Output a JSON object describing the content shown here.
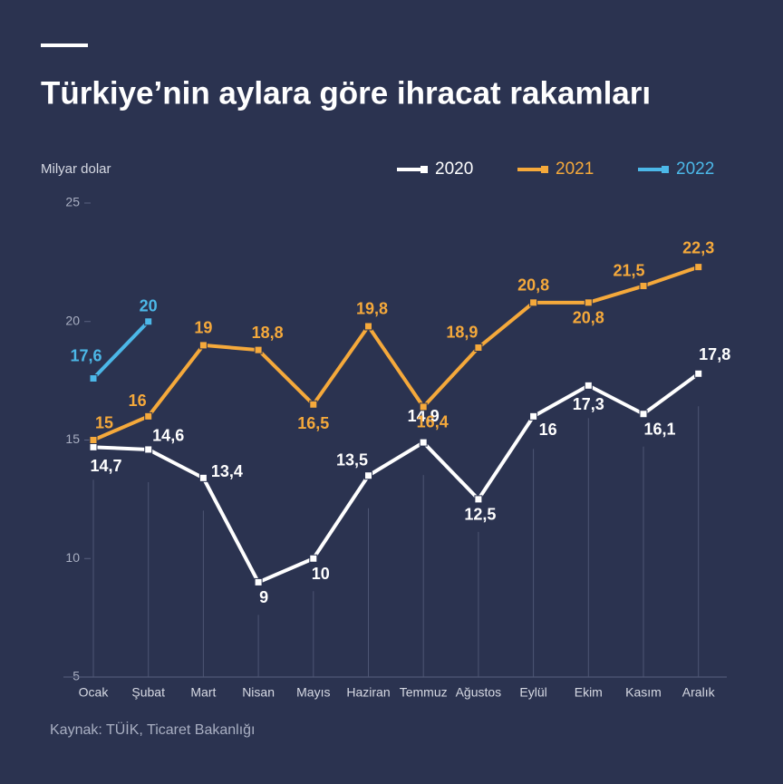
{
  "chart_data": {
    "type": "line",
    "title": "Türkiye’nin aylara göre ihracat rakamları",
    "y_label": "Milyar dolar",
    "source": "Kaynak: TÜİK, Ticaret Bakanlığı",
    "categories": [
      "Ocak",
      "Şubat",
      "Mart",
      "Nisan",
      "Mayıs",
      "Haziran",
      "Temmuz",
      "Ağustos",
      "Eylül",
      "Ekim",
      "Kasım",
      "Aralık"
    ],
    "series": [
      {
        "name": "2020",
        "color": "#ffffff",
        "values": [
          14.7,
          14.6,
          13.4,
          9,
          10,
          13.5,
          14.9,
          12.5,
          16,
          17.3,
          16.1,
          17.8
        ],
        "value_labels": [
          "14,7",
          "14,6",
          "13,4",
          "9",
          "10",
          "13,5",
          "14,9",
          "12,5",
          "16",
          "17,3",
          "16,1",
          "17,8"
        ]
      },
      {
        "name": "2021",
        "color": "#f5a93b",
        "values": [
          15,
          16,
          19,
          18.8,
          16.5,
          19.8,
          16.4,
          18.9,
          20.8,
          20.8,
          21.5,
          22.3
        ],
        "value_labels": [
          "15",
          "16",
          "19",
          "18,8",
          "16,5",
          "19,8",
          "16,4",
          "18,9",
          "20,8",
          "20,8",
          "21,5",
          "22,3"
        ]
      },
      {
        "name": "2022",
        "color": "#4cb8e8",
        "values": [
          17.6,
          20,
          null,
          null,
          null,
          null,
          null,
          null,
          null,
          null,
          null,
          null
        ],
        "value_labels": [
          "17,6",
          "20",
          null,
          null,
          null,
          null,
          null,
          null,
          null,
          null,
          null,
          null
        ]
      }
    ],
    "ylim": [
      5,
      25
    ],
    "yticks": [
      5,
      10,
      15,
      20,
      25
    ]
  }
}
